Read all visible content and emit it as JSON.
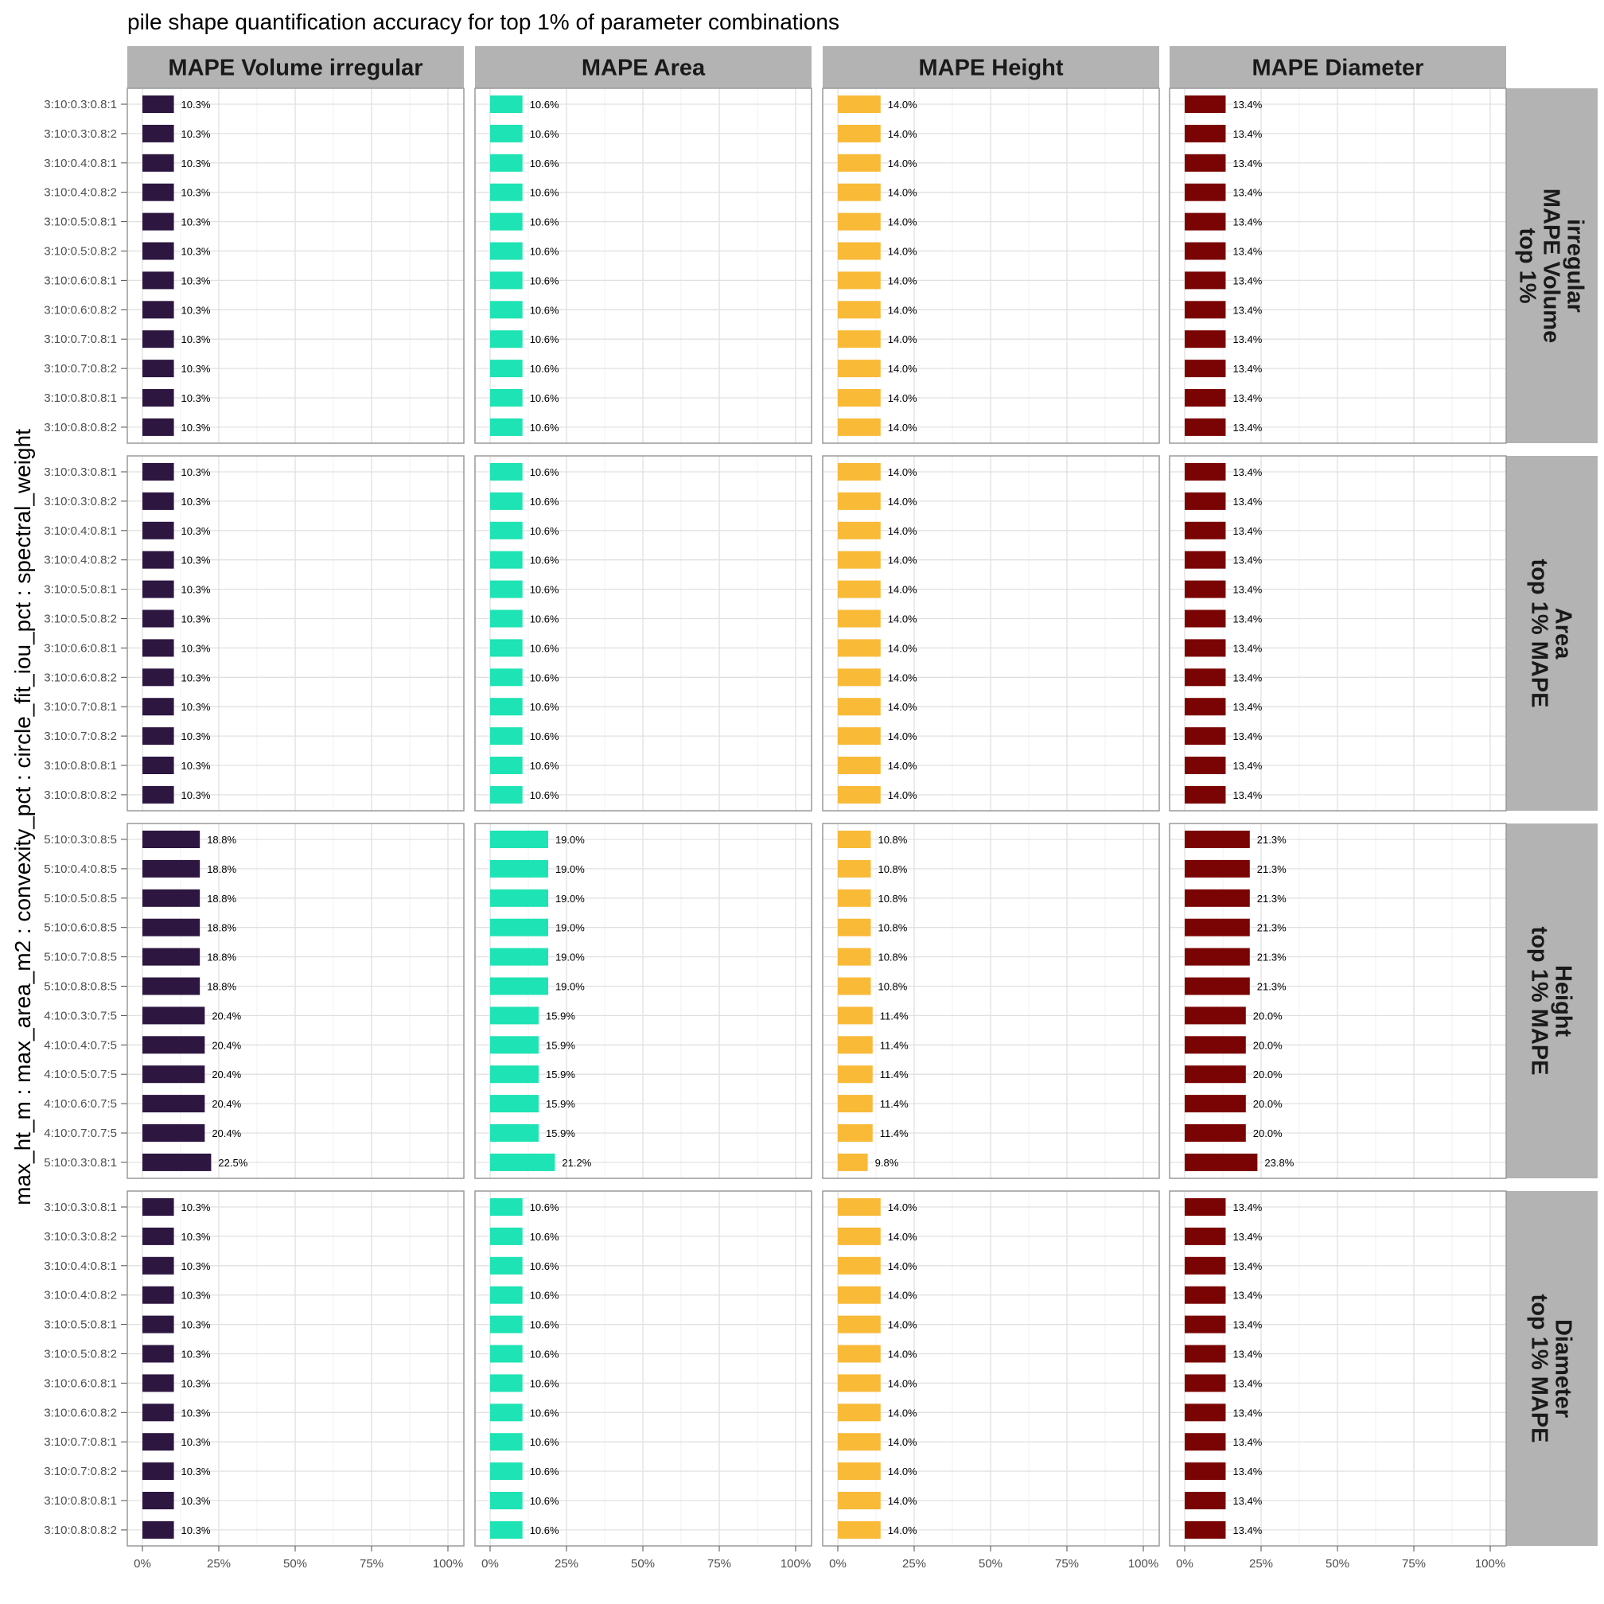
{
  "chart_data": {
    "type": "bar",
    "orientation": "horizontal",
    "title": "pile shape quantification accuracy for top 1% of parameter combinations",
    "ylabel": "max_ht_m : max_area_m2 : convexity_pct : circle_fit_iou_pct : spectral_weight",
    "xlabel": "",
    "xlim": [
      0,
      100
    ],
    "x_ticks": [
      "0%",
      "25%",
      "50%",
      "75%",
      "100%"
    ],
    "x_tick_values": [
      0,
      25,
      50,
      75,
      100
    ],
    "grid": true,
    "columns": [
      {
        "label": "MAPE Volume irregular",
        "color": "#2d1640"
      },
      {
        "label": "MAPE Area",
        "color": "#1ee3b4"
      },
      {
        "label": "MAPE Height",
        "color": "#f9ba38"
      },
      {
        "label": "MAPE Diameter",
        "color": "#7a0403"
      }
    ],
    "rows": [
      {
        "label_lines": [
          "top 1%",
          "MAPE Volume",
          "irregular"
        ],
        "categories": [
          "3:10:0.3:0.8:1",
          "3:10:0.3:0.8:2",
          "3:10:0.4:0.8:1",
          "3:10:0.4:0.8:2",
          "3:10:0.5:0.8:1",
          "3:10:0.5:0.8:2",
          "3:10:0.6:0.8:1",
          "3:10:0.6:0.8:2",
          "3:10:0.7:0.8:1",
          "3:10:0.7:0.8:2",
          "3:10:0.8:0.8:1",
          "3:10:0.8:0.8:2"
        ],
        "values": [
          [
            10.3,
            10.3,
            10.3,
            10.3,
            10.3,
            10.3,
            10.3,
            10.3,
            10.3,
            10.3,
            10.3,
            10.3
          ],
          [
            10.6,
            10.6,
            10.6,
            10.6,
            10.6,
            10.6,
            10.6,
            10.6,
            10.6,
            10.6,
            10.6,
            10.6
          ],
          [
            14.0,
            14.0,
            14.0,
            14.0,
            14.0,
            14.0,
            14.0,
            14.0,
            14.0,
            14.0,
            14.0,
            14.0
          ],
          [
            13.4,
            13.4,
            13.4,
            13.4,
            13.4,
            13.4,
            13.4,
            13.4,
            13.4,
            13.4,
            13.4,
            13.4
          ]
        ],
        "labels": [
          [
            "10.3%",
            "10.3%",
            "10.3%",
            "10.3%",
            "10.3%",
            "10.3%",
            "10.3%",
            "10.3%",
            "10.3%",
            "10.3%",
            "10.3%",
            "10.3%"
          ],
          [
            "10.6%",
            "10.6%",
            "10.6%",
            "10.6%",
            "10.6%",
            "10.6%",
            "10.6%",
            "10.6%",
            "10.6%",
            "10.6%",
            "10.6%",
            "10.6%"
          ],
          [
            "14.0%",
            "14.0%",
            "14.0%",
            "14.0%",
            "14.0%",
            "14.0%",
            "14.0%",
            "14.0%",
            "14.0%",
            "14.0%",
            "14.0%",
            "14.0%"
          ],
          [
            "13.4%",
            "13.4%",
            "13.4%",
            "13.4%",
            "13.4%",
            "13.4%",
            "13.4%",
            "13.4%",
            "13.4%",
            "13.4%",
            "13.4%",
            "13.4%"
          ]
        ]
      },
      {
        "label_lines": [
          "top 1% MAPE",
          "Area"
        ],
        "categories": [
          "3:10:0.3:0.8:1",
          "3:10:0.3:0.8:2",
          "3:10:0.4:0.8:1",
          "3:10:0.4:0.8:2",
          "3:10:0.5:0.8:1",
          "3:10:0.5:0.8:2",
          "3:10:0.6:0.8:1",
          "3:10:0.6:0.8:2",
          "3:10:0.7:0.8:1",
          "3:10:0.7:0.8:2",
          "3:10:0.8:0.8:1",
          "3:10:0.8:0.8:2"
        ],
        "values": [
          [
            10.3,
            10.3,
            10.3,
            10.3,
            10.3,
            10.3,
            10.3,
            10.3,
            10.3,
            10.3,
            10.3,
            10.3
          ],
          [
            10.6,
            10.6,
            10.6,
            10.6,
            10.6,
            10.6,
            10.6,
            10.6,
            10.6,
            10.6,
            10.6,
            10.6
          ],
          [
            14.0,
            14.0,
            14.0,
            14.0,
            14.0,
            14.0,
            14.0,
            14.0,
            14.0,
            14.0,
            14.0,
            14.0
          ],
          [
            13.4,
            13.4,
            13.4,
            13.4,
            13.4,
            13.4,
            13.4,
            13.4,
            13.4,
            13.4,
            13.4,
            13.4
          ]
        ],
        "labels": [
          [
            "10.3%",
            "10.3%",
            "10.3%",
            "10.3%",
            "10.3%",
            "10.3%",
            "10.3%",
            "10.3%",
            "10.3%",
            "10.3%",
            "10.3%",
            "10.3%"
          ],
          [
            "10.6%",
            "10.6%",
            "10.6%",
            "10.6%",
            "10.6%",
            "10.6%",
            "10.6%",
            "10.6%",
            "10.6%",
            "10.6%",
            "10.6%",
            "10.6%"
          ],
          [
            "14.0%",
            "14.0%",
            "14.0%",
            "14.0%",
            "14.0%",
            "14.0%",
            "14.0%",
            "14.0%",
            "14.0%",
            "14.0%",
            "14.0%",
            "14.0%"
          ],
          [
            "13.4%",
            "13.4%",
            "13.4%",
            "13.4%",
            "13.4%",
            "13.4%",
            "13.4%",
            "13.4%",
            "13.4%",
            "13.4%",
            "13.4%",
            "13.4%"
          ]
        ]
      },
      {
        "label_lines": [
          "top 1% MAPE",
          "Height"
        ],
        "categories": [
          "5:10:0.3:0.8:5",
          "5:10:0.4:0.8:5",
          "5:10:0.5:0.8:5",
          "5:10:0.6:0.8:5",
          "5:10:0.7:0.8:5",
          "5:10:0.8:0.8:5",
          "4:10:0.3:0.7:5",
          "4:10:0.4:0.7:5",
          "4:10:0.5:0.7:5",
          "4:10:0.6:0.7:5",
          "4:10:0.7:0.7:5",
          "5:10:0.3:0.8:1"
        ],
        "values": [
          [
            18.8,
            18.8,
            18.8,
            18.8,
            18.8,
            18.8,
            20.4,
            20.4,
            20.4,
            20.4,
            20.4,
            22.5
          ],
          [
            19.0,
            19.0,
            19.0,
            19.0,
            19.0,
            19.0,
            15.9,
            15.9,
            15.9,
            15.9,
            15.9,
            21.2
          ],
          [
            10.8,
            10.8,
            10.8,
            10.8,
            10.8,
            10.8,
            11.4,
            11.4,
            11.4,
            11.4,
            11.4,
            9.8
          ],
          [
            21.3,
            21.3,
            21.3,
            21.3,
            21.3,
            21.3,
            20.0,
            20.0,
            20.0,
            20.0,
            20.0,
            23.8
          ]
        ],
        "labels": [
          [
            "18.8%",
            "18.8%",
            "18.8%",
            "18.8%",
            "18.8%",
            "18.8%",
            "20.4%",
            "20.4%",
            "20.4%",
            "20.4%",
            "20.4%",
            "22.5%"
          ],
          [
            "19.0%",
            "19.0%",
            "19.0%",
            "19.0%",
            "19.0%",
            "19.0%",
            "15.9%",
            "15.9%",
            "15.9%",
            "15.9%",
            "15.9%",
            "21.2%"
          ],
          [
            "10.8%",
            "10.8%",
            "10.8%",
            "10.8%",
            "10.8%",
            "10.8%",
            "11.4%",
            "11.4%",
            "11.4%",
            "11.4%",
            "11.4%",
            "9.8%"
          ],
          [
            "21.3%",
            "21.3%",
            "21.3%",
            "21.3%",
            "21.3%",
            "21.3%",
            "20.0%",
            "20.0%",
            "20.0%",
            "20.0%",
            "20.0%",
            "23.8%"
          ]
        ]
      },
      {
        "label_lines": [
          "top 1% MAPE",
          "Diameter"
        ],
        "categories": [
          "3:10:0.3:0.8:1",
          "3:10:0.3:0.8:2",
          "3:10:0.4:0.8:1",
          "3:10:0.4:0.8:2",
          "3:10:0.5:0.8:1",
          "3:10:0.5:0.8:2",
          "3:10:0.6:0.8:1",
          "3:10:0.6:0.8:2",
          "3:10:0.7:0.8:1",
          "3:10:0.7:0.8:2",
          "3:10:0.8:0.8:1",
          "3:10:0.8:0.8:2"
        ],
        "values": [
          [
            10.3,
            10.3,
            10.3,
            10.3,
            10.3,
            10.3,
            10.3,
            10.3,
            10.3,
            10.3,
            10.3,
            10.3
          ],
          [
            10.6,
            10.6,
            10.6,
            10.6,
            10.6,
            10.6,
            10.6,
            10.6,
            10.6,
            10.6,
            10.6,
            10.6
          ],
          [
            14.0,
            14.0,
            14.0,
            14.0,
            14.0,
            14.0,
            14.0,
            14.0,
            14.0,
            14.0,
            14.0,
            14.0
          ],
          [
            13.4,
            13.4,
            13.4,
            13.4,
            13.4,
            13.4,
            13.4,
            13.4,
            13.4,
            13.4,
            13.4,
            13.4
          ]
        ],
        "labels": [
          [
            "10.3%",
            "10.3%",
            "10.3%",
            "10.3%",
            "10.3%",
            "10.3%",
            "10.3%",
            "10.3%",
            "10.3%",
            "10.3%",
            "10.3%",
            "10.3%"
          ],
          [
            "10.6%",
            "10.6%",
            "10.6%",
            "10.6%",
            "10.6%",
            "10.6%",
            "10.6%",
            "10.6%",
            "10.6%",
            "10.6%",
            "10.6%",
            "10.6%"
          ],
          [
            "14.0%",
            "14.0%",
            "14.0%",
            "14.0%",
            "14.0%",
            "14.0%",
            "14.0%",
            "14.0%",
            "14.0%",
            "14.0%",
            "14.0%",
            "14.0%"
          ],
          [
            "13.4%",
            "13.4%",
            "13.4%",
            "13.4%",
            "13.4%",
            "13.4%",
            "13.4%",
            "13.4%",
            "13.4%",
            "13.4%",
            "13.4%",
            "13.4%"
          ]
        ]
      }
    ]
  }
}
